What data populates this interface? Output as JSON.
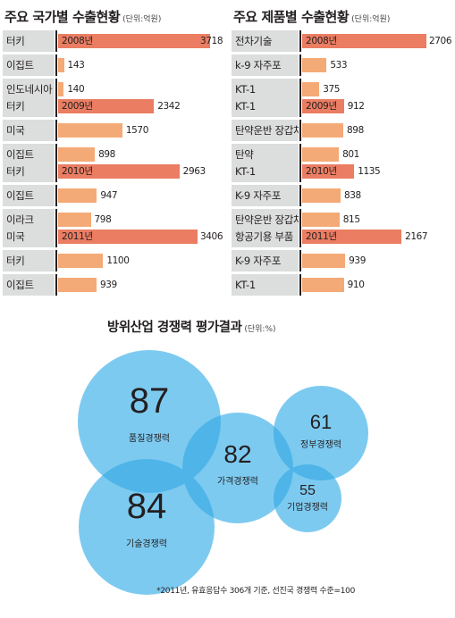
{
  "chart_data": [
    {
      "type": "bar",
      "title": "주요 국가별 수출현황",
      "unit": "(단위:억원)",
      "xlim": [
        0,
        3800
      ],
      "groups": [
        {
          "year": "2008년",
          "rows": [
            {
              "label": "터키",
              "value": 3718,
              "highlight": true
            },
            {
              "label": "이집트",
              "value": 143,
              "highlight": false
            },
            {
              "label": "인도네시아",
              "value": 140,
              "highlight": false
            }
          ]
        },
        {
          "year": "2009년",
          "rows": [
            {
              "label": "터키",
              "value": 2342,
              "highlight": true
            },
            {
              "label": "미국",
              "value": 1570,
              "highlight": false
            },
            {
              "label": "이집트",
              "value": 898,
              "highlight": false
            }
          ]
        },
        {
          "year": "2010년",
          "rows": [
            {
              "label": "터키",
              "value": 2963,
              "highlight": true
            },
            {
              "label": "이집트",
              "value": 947,
              "highlight": false
            },
            {
              "label": "이라크",
              "value": 798,
              "highlight": false
            }
          ]
        },
        {
          "year": "2011년",
          "rows": [
            {
              "label": "미국",
              "value": 3406,
              "highlight": true
            },
            {
              "label": "터키",
              "value": 1100,
              "highlight": false
            },
            {
              "label": "이집트",
              "value": 939,
              "highlight": false
            }
          ]
        }
      ]
    },
    {
      "type": "bar",
      "title": "주요 제품별 수출현황",
      "unit": "(단위:억원)",
      "xlim": [
        0,
        2750
      ],
      "groups": [
        {
          "year": "2008년",
          "rows": [
            {
              "label": "전차기술",
              "value": 2706,
              "highlight": true
            },
            {
              "label": "k-9 자주포",
              "value": 533,
              "highlight": false
            },
            {
              "label": "KT-1",
              "value": 375,
              "highlight": false
            }
          ]
        },
        {
          "year": "2009년",
          "rows": [
            {
              "label": "KT-1",
              "value": 912,
              "highlight": true
            },
            {
              "label": "탄약운반 장갑차",
              "value": 898,
              "highlight": false
            },
            {
              "label": "탄약",
              "value": 801,
              "highlight": false
            }
          ]
        },
        {
          "year": "2010년",
          "rows": [
            {
              "label": "KT-1",
              "value": 1135,
              "highlight": true
            },
            {
              "label": "K-9 자주포",
              "value": 838,
              "highlight": false
            },
            {
              "label": "탄약운반 장갑차",
              "value": 815,
              "highlight": false
            }
          ]
        },
        {
          "year": "2011년",
          "rows": [
            {
              "label": "항공기용 부품",
              "value": 2167,
              "highlight": true
            },
            {
              "label": "K-9 자주포",
              "value": 939,
              "highlight": false
            },
            {
              "label": "KT-1",
              "value": 910,
              "highlight": false
            }
          ]
        }
      ]
    },
    {
      "type": "bubble",
      "title": "방위산업 경쟁력 평가결과",
      "unit": "(단위:%)",
      "items": [
        {
          "label": "품질경쟁력",
          "value": 87
        },
        {
          "label": "기술경쟁력",
          "value": 84
        },
        {
          "label": "가격경쟁력",
          "value": 82
        },
        {
          "label": "정부경쟁력",
          "value": 61
        },
        {
          "label": "기업경쟁력",
          "value": 55
        }
      ],
      "footnote": "*2011년, 유효응답수 306개 기준, 선진국 경쟁력 수준=100"
    }
  ],
  "colors": {
    "highlight_bar": "#ea7d62",
    "normal_bar": "#f4aa76",
    "label_bg": "#dcdddd",
    "bubble_fill": "#7dcaf0",
    "bubble_overlap": "#4fb5e8"
  }
}
